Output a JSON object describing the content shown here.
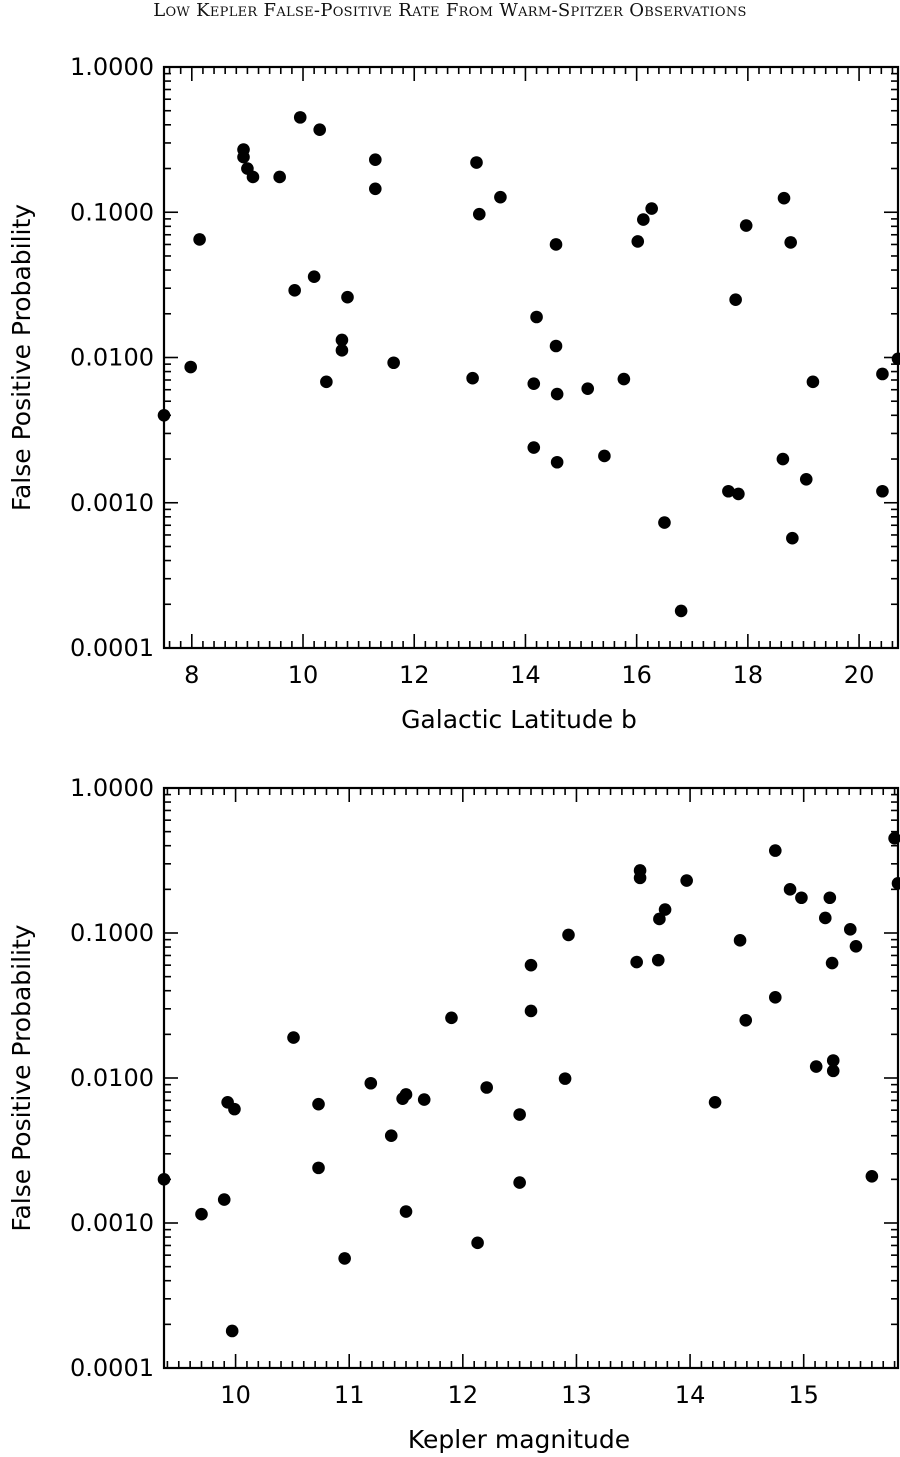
{
  "page": {
    "running_head": "Low Kepler False-Positive Rate From Warm-Spitzer Observations"
  },
  "chart_data": [
    {
      "type": "scatter",
      "xlabel": "Galactic Latitude b",
      "ylabel": "False Positive Probability",
      "xlim": [
        7.5,
        20.7
      ],
      "ylim": [
        0.0001,
        1.0
      ],
      "yscale": "log",
      "xticks": [
        8,
        10,
        12,
        14,
        16,
        18,
        20
      ],
      "yticks": [
        1.0,
        0.1,
        0.01,
        0.001,
        0.0001
      ],
      "ytick_labels": [
        "1.0000",
        "0.1000",
        "0.0100",
        "0.0010",
        "0.0001"
      ],
      "grid": false,
      "points": [
        [
          7.5,
          0.004
        ],
        [
          7.98,
          0.0086
        ],
        [
          8.14,
          0.065
        ],
        [
          8.93,
          0.27
        ],
        [
          8.93,
          0.24
        ],
        [
          9.0,
          0.2
        ],
        [
          9.1,
          0.175
        ],
        [
          9.58,
          0.175
        ],
        [
          9.85,
          0.029
        ],
        [
          9.95,
          0.45
        ],
        [
          10.2,
          0.036
        ],
        [
          10.3,
          0.37
        ],
        [
          10.42,
          0.0068
        ],
        [
          10.7,
          0.0132
        ],
        [
          10.7,
          0.0112
        ],
        [
          10.8,
          0.026
        ],
        [
          11.3,
          0.23
        ],
        [
          11.3,
          0.145
        ],
        [
          11.63,
          0.0092
        ],
        [
          13.05,
          0.0072
        ],
        [
          13.12,
          0.22
        ],
        [
          13.17,
          0.097
        ],
        [
          13.55,
          0.127
        ],
        [
          14.15,
          0.0066
        ],
        [
          14.15,
          0.0024
        ],
        [
          14.2,
          0.019
        ],
        [
          14.55,
          0.06
        ],
        [
          14.55,
          0.012
        ],
        [
          14.57,
          0.0056
        ],
        [
          14.57,
          0.0019
        ],
        [
          15.12,
          0.0061
        ],
        [
          15.42,
          0.0021
        ],
        [
          15.77,
          0.0071
        ],
        [
          16.02,
          0.063
        ],
        [
          16.12,
          0.089
        ],
        [
          16.27,
          0.106
        ],
        [
          16.5,
          0.00073
        ],
        [
          16.8,
          0.00018
        ],
        [
          17.65,
          0.0012
        ],
        [
          17.78,
          0.025
        ],
        [
          17.83,
          0.00115
        ],
        [
          17.97,
          0.081
        ],
        [
          18.65,
          0.125
        ],
        [
          18.63,
          0.002
        ],
        [
          18.77,
          0.062
        ],
        [
          18.8,
          0.00057
        ],
        [
          19.05,
          0.00145
        ],
        [
          19.17,
          0.0068
        ],
        [
          20.42,
          0.0077
        ],
        [
          20.42,
          0.0012
        ],
        [
          20.7,
          0.0098
        ]
      ]
    },
    {
      "type": "scatter",
      "xlabel": "Kepler magnitude",
      "ylabel": "False Positive Probability",
      "xlim": [
        9.37,
        15.83
      ],
      "ylim": [
        0.0001,
        1.0
      ],
      "yscale": "log",
      "xticks": [
        10,
        11,
        12,
        13,
        14,
        15
      ],
      "yticks": [
        1.0,
        0.1,
        0.01,
        0.001,
        0.0001
      ],
      "ytick_labels": [
        "1.0000",
        "0.1000",
        "0.0100",
        "0.0010",
        "0.0001"
      ],
      "grid": false,
      "points": [
        [
          9.37,
          0.002
        ],
        [
          9.7,
          0.00115
        ],
        [
          9.9,
          0.00145
        ],
        [
          9.93,
          0.0068
        ],
        [
          9.97,
          0.00018
        ],
        [
          9.99,
          0.0061
        ],
        [
          10.51,
          0.019
        ],
        [
          10.73,
          0.0066
        ],
        [
          10.73,
          0.0024
        ],
        [
          10.96,
          0.00057
        ],
        [
          11.19,
          0.0092
        ],
        [
          11.37,
          0.004
        ],
        [
          11.47,
          0.0072
        ],
        [
          11.5,
          0.0077
        ],
        [
          11.5,
          0.0012
        ],
        [
          11.66,
          0.0071
        ],
        [
          11.9,
          0.026
        ],
        [
          12.13,
          0.00073
        ],
        [
          12.21,
          0.0086
        ],
        [
          12.5,
          0.0056
        ],
        [
          12.5,
          0.0019
        ],
        [
          12.6,
          0.06
        ],
        [
          12.6,
          0.029
        ],
        [
          12.9,
          0.0099
        ],
        [
          12.93,
          0.097
        ],
        [
          13.53,
          0.063
        ],
        [
          13.56,
          0.27
        ],
        [
          13.56,
          0.24
        ],
        [
          13.72,
          0.065
        ],
        [
          13.73,
          0.125
        ],
        [
          13.78,
          0.145
        ],
        [
          13.97,
          0.23
        ],
        [
          14.22,
          0.0068
        ],
        [
          14.44,
          0.089
        ],
        [
          14.49,
          0.025
        ],
        [
          14.75,
          0.37
        ],
        [
          14.75,
          0.036
        ],
        [
          14.88,
          0.2
        ],
        [
          14.98,
          0.175
        ],
        [
          15.11,
          0.012
        ],
        [
          15.19,
          0.127
        ],
        [
          15.23,
          0.175
        ],
        [
          15.25,
          0.062
        ],
        [
          15.26,
          0.0132
        ],
        [
          15.26,
          0.0112
        ],
        [
          15.41,
          0.106
        ],
        [
          15.46,
          0.081
        ],
        [
          15.6,
          0.0021
        ],
        [
          15.8,
          0.45
        ],
        [
          15.83,
          0.22
        ]
      ]
    }
  ]
}
